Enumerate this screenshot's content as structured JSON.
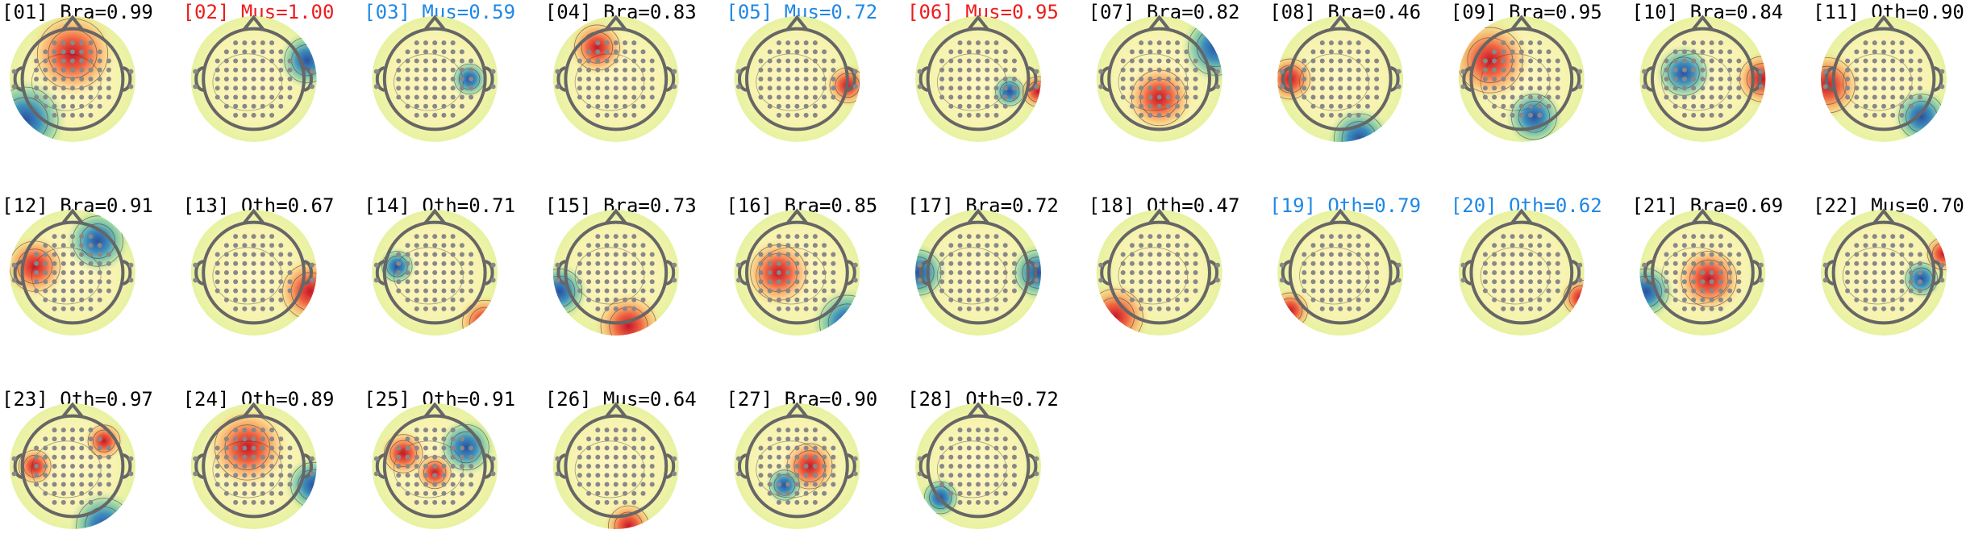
{
  "components": [
    {
      "label": "[01] Bra=0.99",
      "color": "#000000"
    },
    {
      "label": "[02] Mus=1.00",
      "color": "#ee1c1c"
    },
    {
      "label": "[03] Mus=0.59",
      "color": "#1e88e5"
    },
    {
      "label": "[04] Bra=0.83",
      "color": "#000000"
    },
    {
      "label": "[05] Mus=0.72",
      "color": "#1e88e5"
    },
    {
      "label": "[06] Mus=0.95",
      "color": "#ee1c1c"
    },
    {
      "label": "[07] Bra=0.82",
      "color": "#000000"
    },
    {
      "label": "[08] Bra=0.46",
      "color": "#000000"
    },
    {
      "label": "[09] Bra=0.95",
      "color": "#000000"
    },
    {
      "label": "[10] Bra=0.84",
      "color": "#000000"
    },
    {
      "label": "[11] Oth=0.90",
      "color": "#000000"
    },
    {
      "label": "[12] Bra=0.91",
      "color": "#000000"
    },
    {
      "label": "[13] Oth=0.67",
      "color": "#000000"
    },
    {
      "label": "[14] Oth=0.71",
      "color": "#000000"
    },
    {
      "label": "[15] Bra=0.73",
      "color": "#000000"
    },
    {
      "label": "[16] Bra=0.85",
      "color": "#000000"
    },
    {
      "label": "[17] Bra=0.72",
      "color": "#000000"
    },
    {
      "label": "[18] Oth=0.47",
      "color": "#000000"
    },
    {
      "label": "[19] Oth=0.79",
      "color": "#1e88e5"
    },
    {
      "label": "[20] Oth=0.62",
      "color": "#1e88e5"
    },
    {
      "label": "[21] Bra=0.69",
      "color": "#000000"
    },
    {
      "label": "[22] Mus=0.70",
      "color": "#000000"
    },
    {
      "label": "[23] Oth=0.97",
      "color": "#000000"
    },
    {
      "label": "[24] Oth=0.89",
      "color": "#000000"
    },
    {
      "label": "[25] Oth=0.91",
      "color": "#000000"
    },
    {
      "label": "[26] Mus=0.64",
      "color": "#000000"
    },
    {
      "label": "[27] Bra=0.90",
      "color": "#000000"
    },
    {
      "label": "[28] Oth=0.72",
      "color": "#000000"
    }
  ]
}
